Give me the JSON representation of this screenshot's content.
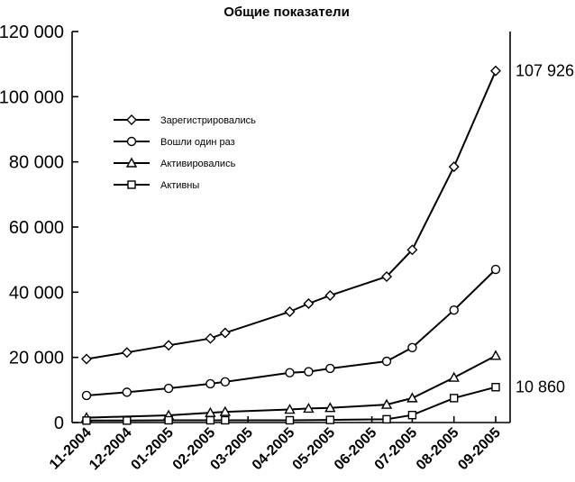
{
  "chart_data": {
    "type": "line",
    "title": "Общие показатели",
    "xlabel": "",
    "ylabel": "",
    "ylim": [
      0,
      120000
    ],
    "yticks": [
      {
        "value": 0,
        "label": "0"
      },
      {
        "value": 20000,
        "label": "20 000"
      },
      {
        "value": 40000,
        "label": "40 000"
      },
      {
        "value": 60000,
        "label": "60 000"
      },
      {
        "value": 80000,
        "label": "80 000"
      },
      {
        "value": 100000,
        "label": "100 000"
      },
      {
        "value": 120000,
        "label": "120 000"
      }
    ],
    "xlim": [
      "2004-11-01",
      "2005-09-01"
    ],
    "xticks": [
      {
        "date": "2004-11-01",
        "label": "11-2004"
      },
      {
        "date": "2004-12-01",
        "label": "12-2004"
      },
      {
        "date": "2005-01-01",
        "label": "01-2005"
      },
      {
        "date": "2005-02-01",
        "label": "02-2005"
      },
      {
        "date": "2005-03-01",
        "label": "03-2005"
      },
      {
        "date": "2005-04-01",
        "label": "04-2005"
      },
      {
        "date": "2005-05-01",
        "label": "05-2005"
      },
      {
        "date": "2005-06-01",
        "label": "06-2005"
      },
      {
        "date": "2005-07-01",
        "label": "07-2005"
      },
      {
        "date": "2005-08-01",
        "label": "08-2005"
      },
      {
        "date": "2005-09-01",
        "label": "09-2005"
      }
    ],
    "grid": false,
    "legend": "upper-left inside plot",
    "series": [
      {
        "name": "Зарегистрировались",
        "marker": "diamond",
        "points": [
          {
            "x": "2004-11-01",
            "y": 19500
          },
          {
            "x": "2004-12-01",
            "y": 21500
          },
          {
            "x": "2005-01-01",
            "y": 23700
          },
          {
            "x": "2005-02-01",
            "y": 25800
          },
          {
            "x": "2005-02-12",
            "y": 27500
          },
          {
            "x": "2005-04-01",
            "y": 34000
          },
          {
            "x": "2005-04-15",
            "y": 36500
          },
          {
            "x": "2005-05-01",
            "y": 39000
          },
          {
            "x": "2005-06-12",
            "y": 44800
          },
          {
            "x": "2005-07-01",
            "y": 53000
          },
          {
            "x": "2005-08-01",
            "y": 78500
          },
          {
            "x": "2005-09-01",
            "y": 107926
          }
        ]
      },
      {
        "name": "Вошли один раз",
        "marker": "circle",
        "points": [
          {
            "x": "2004-11-01",
            "y": 8300
          },
          {
            "x": "2004-12-01",
            "y": 9300
          },
          {
            "x": "2005-01-01",
            "y": 10500
          },
          {
            "x": "2005-02-01",
            "y": 11900
          },
          {
            "x": "2005-02-12",
            "y": 12500
          },
          {
            "x": "2005-04-01",
            "y": 15300
          },
          {
            "x": "2005-04-15",
            "y": 15600
          },
          {
            "x": "2005-05-01",
            "y": 16600
          },
          {
            "x": "2005-06-12",
            "y": 18800
          },
          {
            "x": "2005-07-01",
            "y": 23000
          },
          {
            "x": "2005-08-01",
            "y": 34500
          },
          {
            "x": "2005-09-01",
            "y": 47000
          }
        ]
      },
      {
        "name": "Активировались",
        "marker": "triangle",
        "points": [
          {
            "x": "2004-11-01",
            "y": 1500
          },
          {
            "x": "2005-01-01",
            "y": 2200
          },
          {
            "x": "2005-02-01",
            "y": 3000
          },
          {
            "x": "2005-02-12",
            "y": 3300
          },
          {
            "x": "2005-04-01",
            "y": 4000
          },
          {
            "x": "2005-04-15",
            "y": 4300
          },
          {
            "x": "2005-05-01",
            "y": 4500
          },
          {
            "x": "2005-06-12",
            "y": 5500
          },
          {
            "x": "2005-07-01",
            "y": 7500
          },
          {
            "x": "2005-08-01",
            "y": 13800
          },
          {
            "x": "2005-09-01",
            "y": 20500
          }
        ]
      },
      {
        "name": "Активны",
        "marker": "square",
        "points": [
          {
            "x": "2004-11-01",
            "y": 600
          },
          {
            "x": "2004-12-01",
            "y": 600
          },
          {
            "x": "2005-01-01",
            "y": 700
          },
          {
            "x": "2005-02-01",
            "y": 700
          },
          {
            "x": "2005-02-12",
            "y": 700
          },
          {
            "x": "2005-04-01",
            "y": 700
          },
          {
            "x": "2005-05-01",
            "y": 800
          },
          {
            "x": "2005-06-12",
            "y": 1000
          },
          {
            "x": "2005-07-01",
            "y": 2300
          },
          {
            "x": "2005-08-01",
            "y": 7500
          },
          {
            "x": "2005-09-01",
            "y": 10860
          }
        ]
      }
    ],
    "annotations": [
      {
        "text": "107 926",
        "series": "Зарегистрировались",
        "x": "2005-09-01",
        "y": 107926
      },
      {
        "text": "10 860",
        "series": "Активны",
        "x": "2005-09-01",
        "y": 10860
      }
    ]
  }
}
